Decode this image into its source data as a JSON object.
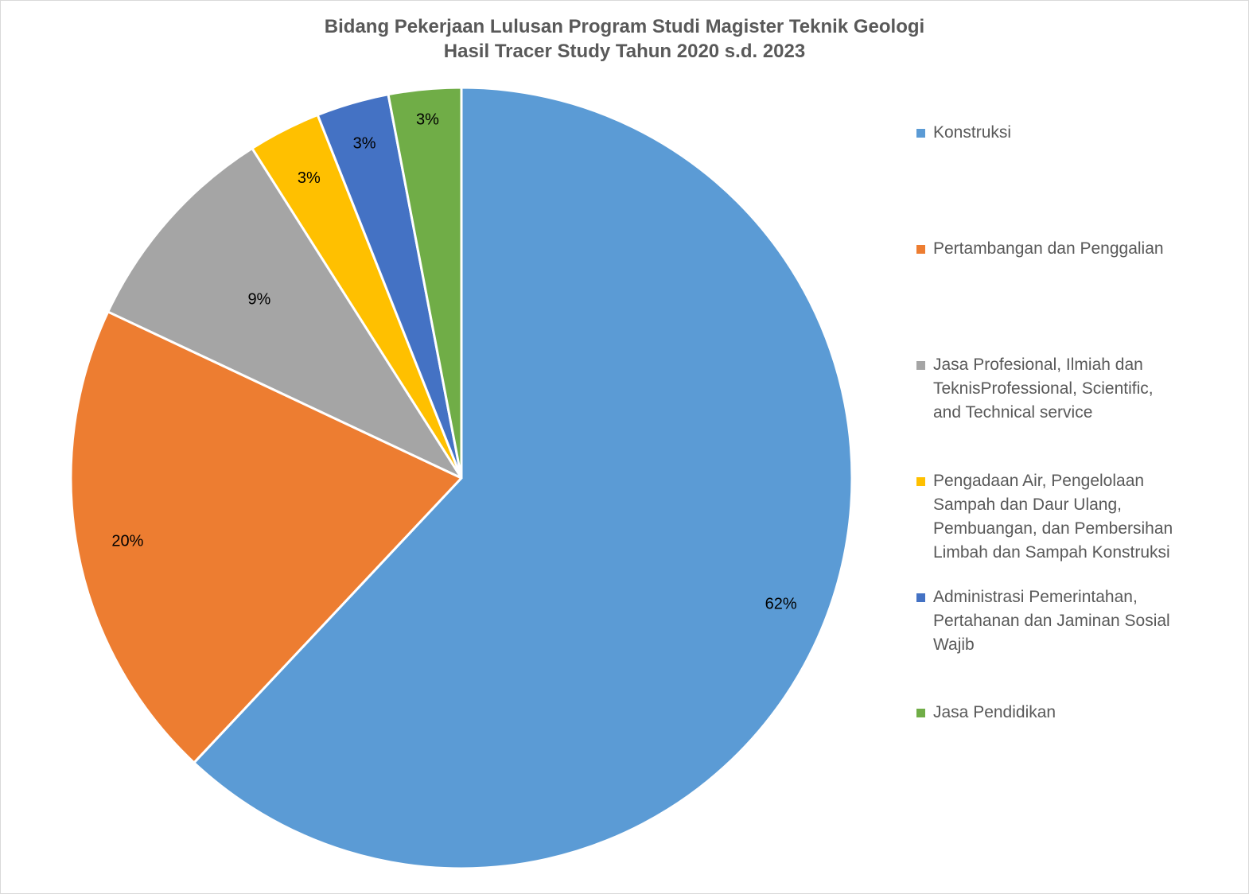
{
  "title": {
    "line1": "Bidang Pekerjaan Lulusan Program Studi Magister Teknik Geologi",
    "line2": "Hasil Tracer Study Tahun 2020 s.d. 2023"
  },
  "chart_data": {
    "type": "pie",
    "title": "Bidang Pekerjaan Lulusan Program Studi Magister Teknik Geologi Hasil Tracer Study Tahun 2020 s.d. 2023",
    "legend_position": "right",
    "start_angle_deg": 0,
    "direction": "clockwise",
    "slices": [
      {
        "name": "Konstruksi",
        "value": 62,
        "label": "62%",
        "color": "#5B9BD5"
      },
      {
        "name": "Pertambangan dan Penggalian",
        "value": 20,
        "label": "20%",
        "color": "#ED7D31"
      },
      {
        "name": "Jasa Profesional, Ilmiah dan TeknisProfessional, Scientific, and Technical service",
        "value": 9,
        "label": "9%",
        "color": "#A5A5A5"
      },
      {
        "name": "Pengadaan Air, Pengelolaan Sampah dan Daur Ulang, Pembuangan, dan Pembersihan Limbah dan Sampah Konstruksi",
        "value": 3,
        "label": "3%",
        "color": "#FFC000"
      },
      {
        "name": "Administrasi Pemerintahan, Pertahanan dan Jaminan Sosial Wajib",
        "value": 3,
        "label": "3%",
        "color": "#4472C4"
      },
      {
        "name": "Jasa Pendidikan",
        "value": 3,
        "label": "3%",
        "color": "#70AD47"
      }
    ]
  },
  "legend": {
    "items": [
      {
        "lines": [
          "Konstruksi"
        ],
        "color": "#5B9BD5"
      },
      {
        "lines": [
          "Pertambangan dan Penggalian"
        ],
        "color": "#ED7D31"
      },
      {
        "lines": [
          "Jasa Profesional, Ilmiah dan",
          "TeknisProfessional, Scientific,",
          "and Technical service"
        ],
        "color": "#A5A5A5"
      },
      {
        "lines": [
          "Pengadaan Air, Pengelolaan",
          "Sampah dan Daur Ulang,",
          "Pembuangan, dan Pembersihan",
          "Limbah dan Sampah Konstruksi"
        ],
        "color": "#FFC000"
      },
      {
        "lines": [
          "Administrasi Pemerintahan,",
          "Pertahanan dan Jaminan Sosial",
          "Wajib"
        ],
        "color": "#4472C4"
      },
      {
        "lines": [
          "Jasa Pendidikan"
        ],
        "color": "#70AD47"
      }
    ]
  }
}
